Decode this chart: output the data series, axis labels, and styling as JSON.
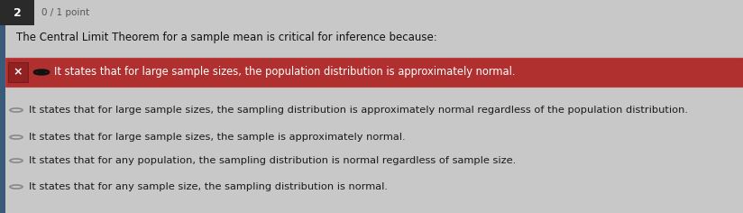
{
  "question_number": "2",
  "score": "0 / 1 point",
  "question_text": "The Central Limit Theorem for a sample mean is critical for inference because:",
  "options": [
    {
      "text": "It states that for large sample sizes, the population distribution is approximately normal.",
      "selected": true,
      "wrong": true
    },
    {
      "text": "It states that for large sample sizes, the sampling distribution is approximately normal regardless of the population distribution.",
      "selected": false,
      "wrong": false
    },
    {
      "text": "It states that for large sample sizes, the sample is approximately normal.",
      "selected": false,
      "wrong": false
    },
    {
      "text": "It states that for any population, the sampling distribution is normal regardless of sample size.",
      "selected": false,
      "wrong": false
    },
    {
      "text": "It states that for any sample size, the sampling distribution is normal.",
      "selected": false,
      "wrong": false
    }
  ],
  "bg_color": "#c8c8c8",
  "highlight_bg": "#b03030",
  "highlight_border_color": "#c04040",
  "number_bg": "#2a2a2a",
  "number_color": "#ffffff",
  "score_color": "#555555",
  "question_color": "#111111",
  "option_text_color": "#1a1a1a",
  "radio_edge_color": "#888888",
  "wrong_x_bg": "#922222",
  "wrong_x_border": "#7a1a1a",
  "left_bar_color": "#3a5a7a",
  "fig_width": 8.24,
  "fig_height": 2.36,
  "dpi": 100
}
